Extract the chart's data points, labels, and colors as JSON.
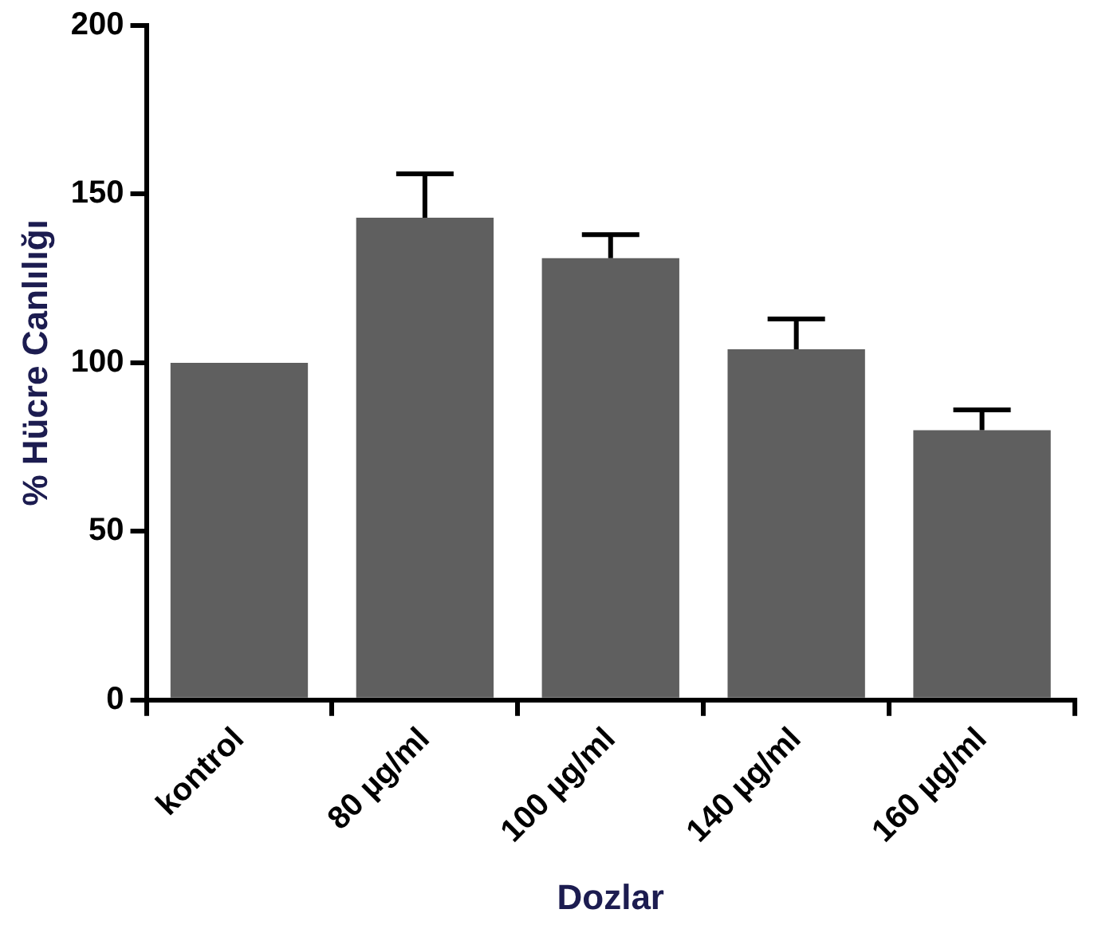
{
  "chart_data": {
    "type": "bar",
    "xlabel": "Dozlar",
    "ylabel": "% Hücre Canlılığı",
    "categories": [
      "kontrol",
      "80 µg/ml",
      "100 µg/ml",
      "140 µg/ml",
      "160 µg/ml"
    ],
    "values": [
      100,
      143,
      131,
      104,
      80
    ],
    "errors": [
      null,
      [
        143,
        156
      ],
      [
        131,
        138
      ],
      [
        104,
        113
      ],
      [
        80,
        86
      ]
    ],
    "color": "#5f5f5f",
    "ylim": [
      0,
      200
    ],
    "yticks": [
      0,
      50,
      100,
      150,
      200
    ],
    "grid": false,
    "legend": false
  }
}
